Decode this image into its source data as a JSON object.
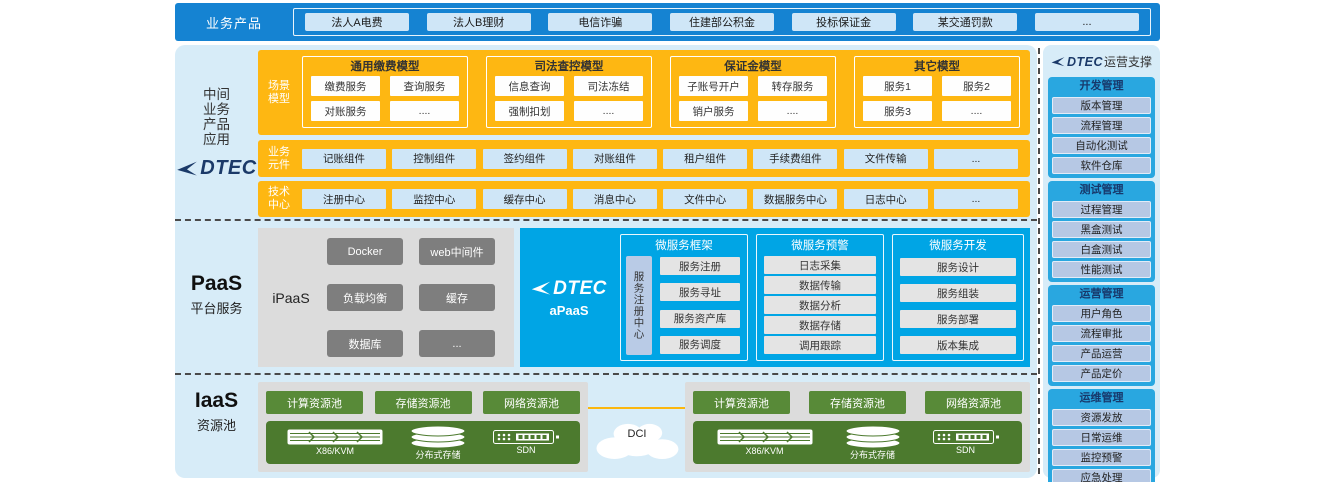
{
  "colors": {
    "topbar_blue": "#1583d2",
    "panel_light_blue": "#d7ecf8",
    "accent_yellow": "#feb712",
    "apaas_blue": "#00a5e5",
    "sidebar_blue": "#29a7e0",
    "chip_light_blue": "#cfe6f7",
    "chip_lavender": "#b6c8e4",
    "gray_box": "#dcdcdc",
    "gray_button": "#7e7e7e",
    "green_button": "#588a38",
    "green_bar": "#4c7a2e",
    "brand_navy": "#1b3a69"
  },
  "topbar": {
    "label": "业务产品",
    "products": [
      "法人A电费",
      "法人B理财",
      "电信诈骗",
      "住建部公积金",
      "投标保证金",
      "某交通罚款",
      "..."
    ]
  },
  "middle": {
    "side_label_lines": [
      "中间",
      "业务",
      "产品",
      "应用"
    ],
    "brand": "DTEC",
    "scene_label": "场景模型",
    "models": [
      {
        "title": "通用缴费模型",
        "items": [
          "缴费服务",
          "查询服务",
          "对账服务",
          "...."
        ]
      },
      {
        "title": "司法查控模型",
        "items": [
          "信息查询",
          "司法冻结",
          "强制扣划",
          "...."
        ]
      },
      {
        "title": "保证金模型",
        "items": [
          "子账号开户",
          "转存服务",
          "销户服务",
          "...."
        ]
      },
      {
        "title": "其它模型",
        "items": [
          "服务1",
          "服务2",
          "服务3",
          "...."
        ]
      }
    ],
    "component_label": "业务元件",
    "components": [
      "记账组件",
      "控制组件",
      "签约组件",
      "对账组件",
      "租户组件",
      "手续费组件",
      "文件传输",
      "..."
    ],
    "tech_label": "技术中心",
    "tech_centers": [
      "注册中心",
      "监控中心",
      "缓存中心",
      "消息中心",
      "文件中心",
      "数据服务中心",
      "日志中心",
      "..."
    ]
  },
  "paas": {
    "title": "PaaS",
    "subtitle": "平台服务",
    "ipaas": {
      "label": "iPaaS",
      "items": [
        "Docker",
        "web中间件",
        "负载均衡",
        "缓存",
        "数据库",
        "..."
      ]
    },
    "apaas": {
      "brand": "DTEC",
      "label": "aPaaS",
      "registry": "服务注册中心",
      "columns": [
        {
          "title": "微服务框架",
          "items": [
            "服务注册",
            "服务寻址",
            "服务资产库",
            "服务调度"
          ]
        },
        {
          "title": "微服务预警",
          "items": [
            "日志采集",
            "数据传输",
            "数据分析",
            "数据存储",
            "调用跟踪"
          ]
        },
        {
          "title": "微服务开发",
          "items": [
            "服务设计",
            "服务组装",
            "服务部署",
            "版本集成"
          ]
        }
      ]
    }
  },
  "iaas": {
    "title": "IaaS",
    "subtitle": "资源池",
    "dci_label": "DCI",
    "pools": [
      "计算资源池",
      "存储资源池",
      "网络资源池"
    ],
    "hardware": [
      {
        "icon": "server-rack-icon",
        "label": "X86/KVM"
      },
      {
        "icon": "storage-array-icon",
        "label": "分布式存储"
      },
      {
        "icon": "network-switch-icon",
        "label": "SDN"
      }
    ]
  },
  "sidebar": {
    "brand": "DTEC",
    "title": "运营支撑",
    "sections": [
      {
        "title": "开发管理",
        "items": [
          "版本管理",
          "流程管理",
          "自动化测试",
          "软件仓库"
        ]
      },
      {
        "title": "测试管理",
        "items": [
          "过程管理",
          "黑盒测试",
          "白盒测试",
          "性能测试"
        ]
      },
      {
        "title": "运营管理",
        "items": [
          "用户角色",
          "流程审批",
          "产品运营",
          "产品定价"
        ]
      },
      {
        "title": "运维管理",
        "items": [
          "资源发放",
          "日常运维",
          "监控预警",
          "应急处理"
        ]
      }
    ]
  }
}
